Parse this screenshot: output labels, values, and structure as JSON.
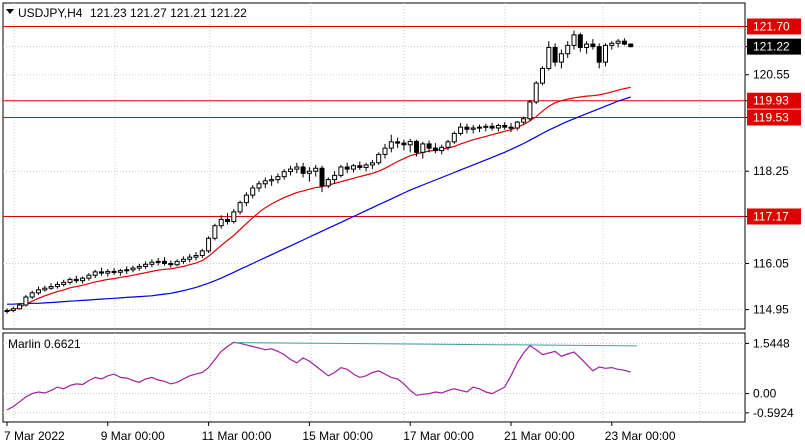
{
  "header": {
    "symbol_tf": "USDJPY,H4",
    "ohlc": "121.23 121.27 121.21 121.22"
  },
  "colors": {
    "background": "#ffffff",
    "plot_bg": "#ffffff",
    "grid": "#c8c8c8",
    "frame": "#000000",
    "candle": "#000000",
    "ma_fast": "#e00000",
    "ma_slow": "#0000e0",
    "level_line": "#e00000",
    "level_tag_bg": "#e00000",
    "level_tag_text": "#ffffff",
    "price_tag_bg": "#000000",
    "price_tag_text": "#ffffff",
    "oscillator": "#a020a0",
    "osc_trendline": "#40a0a0"
  },
  "icons": {
    "menu": "triangle-down-icon"
  },
  "chart_data": [
    {
      "type": "candlestick",
      "title": "USDJPY,H4",
      "ylim": [
        114.75,
        121.95
      ],
      "y_ticks": [
        "121.70",
        "121.22",
        "120.55",
        "119.93",
        "119.53",
        "118.25",
        "117.17",
        "116.05",
        "114.95"
      ],
      "x_tick_labels": [
        "7 Mar 2022",
        "9 Mar 00:00",
        "11 Mar 00:00",
        "15 Mar 00:00",
        "17 Mar 00:00",
        "21 Mar 00:00",
        "23 Mar 00:00"
      ],
      "x_tick_bar_index": [
        0,
        16,
        32,
        48,
        64,
        80,
        96
      ],
      "grid": true,
      "levels": [
        {
          "value": 121.7,
          "label": "121.70"
        },
        {
          "value": 119.93,
          "label": "119.93"
        },
        {
          "value": 119.53,
          "label": "119.53"
        },
        {
          "value": 117.17,
          "label": "117.17"
        }
      ],
      "current_price": {
        "value": 121.22,
        "label": "121.22"
      },
      "candles": [
        [
          114.92,
          114.98,
          114.85,
          114.93
        ],
        [
          114.93,
          115.02,
          114.89,
          114.97
        ],
        [
          114.97,
          115.1,
          114.95,
          115.06
        ],
        [
          115.06,
          115.3,
          115.02,
          115.25
        ],
        [
          115.25,
          115.4,
          115.2,
          115.35
        ],
        [
          115.35,
          115.5,
          115.3,
          115.42
        ],
        [
          115.42,
          115.52,
          115.38,
          115.46
        ],
        [
          115.46,
          115.58,
          115.42,
          115.5
        ],
        [
          115.5,
          115.62,
          115.45,
          115.55
        ],
        [
          115.55,
          115.66,
          115.5,
          115.6
        ],
        [
          115.6,
          115.72,
          115.55,
          115.67
        ],
        [
          115.67,
          115.76,
          115.58,
          115.64
        ],
        [
          115.64,
          115.74,
          115.57,
          115.7
        ],
        [
          115.7,
          115.82,
          115.64,
          115.77
        ],
        [
          115.77,
          115.9,
          115.7,
          115.85
        ],
        [
          115.85,
          115.95,
          115.76,
          115.82
        ],
        [
          115.82,
          115.92,
          115.74,
          115.86
        ],
        [
          115.86,
          115.94,
          115.78,
          115.84
        ],
        [
          115.84,
          115.92,
          115.76,
          115.88
        ],
        [
          115.88,
          115.98,
          115.8,
          115.9
        ],
        [
          115.9,
          116.0,
          115.84,
          115.94
        ],
        [
          115.94,
          116.04,
          115.88,
          115.98
        ],
        [
          115.98,
          116.1,
          115.92,
          116.03
        ],
        [
          116.03,
          116.15,
          115.96,
          116.08
        ],
        [
          116.08,
          116.18,
          116.0,
          116.1
        ],
        [
          116.1,
          116.2,
          116.0,
          116.05
        ],
        [
          116.05,
          116.12,
          115.95,
          116.02
        ],
        [
          116.02,
          116.15,
          115.98,
          116.1
        ],
        [
          116.1,
          116.22,
          116.04,
          116.15
        ],
        [
          116.15,
          116.28,
          116.08,
          116.2
        ],
        [
          116.2,
          116.32,
          116.12,
          116.24
        ],
        [
          116.24,
          116.4,
          116.18,
          116.35
        ],
        [
          116.35,
          116.7,
          116.3,
          116.65
        ],
        [
          116.65,
          117.0,
          116.6,
          116.95
        ],
        [
          116.95,
          117.2,
          116.88,
          117.1
        ],
        [
          117.1,
          117.25,
          116.98,
          117.05
        ],
        [
          117.05,
          117.35,
          117.0,
          117.28
        ],
        [
          117.28,
          117.55,
          117.22,
          117.5
        ],
        [
          117.5,
          117.75,
          117.42,
          117.68
        ],
        [
          117.68,
          117.92,
          117.6,
          117.85
        ],
        [
          117.85,
          118.02,
          117.76,
          117.95
        ],
        [
          117.95,
          118.1,
          117.85,
          118.02
        ],
        [
          118.02,
          118.15,
          117.9,
          118.05
        ],
        [
          118.05,
          118.2,
          117.96,
          118.12
        ],
        [
          118.12,
          118.3,
          118.05,
          118.24
        ],
        [
          118.24,
          118.38,
          118.15,
          118.3
        ],
        [
          118.3,
          118.45,
          118.2,
          118.35
        ],
        [
          118.35,
          118.45,
          118.1,
          118.2
        ],
        [
          118.2,
          118.35,
          118.0,
          118.25
        ],
        [
          118.25,
          118.4,
          118.12,
          118.32
        ],
        [
          118.32,
          118.38,
          117.75,
          117.9
        ],
        [
          117.9,
          118.1,
          117.85,
          118.05
        ],
        [
          118.05,
          118.25,
          117.95,
          118.15
        ],
        [
          118.15,
          118.4,
          118.1,
          118.35
        ],
        [
          118.35,
          118.45,
          118.2,
          118.3
        ],
        [
          118.3,
          118.42,
          118.22,
          118.38
        ],
        [
          118.38,
          118.48,
          118.28,
          118.34
        ],
        [
          118.34,
          118.45,
          118.25,
          118.4
        ],
        [
          118.4,
          118.52,
          118.3,
          118.45
        ],
        [
          118.45,
          118.7,
          118.4,
          118.65
        ],
        [
          118.65,
          118.9,
          118.55,
          118.8
        ],
        [
          118.8,
          119.12,
          118.7,
          118.95
        ],
        [
          118.95,
          119.05,
          118.8,
          118.92
        ],
        [
          118.92,
          119.0,
          118.75,
          118.88
        ],
        [
          118.88,
          119.02,
          118.7,
          118.96
        ],
        [
          118.96,
          119.0,
          118.6,
          118.7
        ],
        [
          118.7,
          118.95,
          118.55,
          118.9
        ],
        [
          118.9,
          118.98,
          118.7,
          118.8
        ],
        [
          118.8,
          118.92,
          118.68,
          118.74
        ],
        [
          118.74,
          118.88,
          118.65,
          118.82
        ],
        [
          118.82,
          119.0,
          118.75,
          118.95
        ],
        [
          118.95,
          119.2,
          118.9,
          119.15
        ],
        [
          119.15,
          119.4,
          119.1,
          119.3
        ],
        [
          119.3,
          119.38,
          119.15,
          119.25
        ],
        [
          119.25,
          119.35,
          119.15,
          119.28
        ],
        [
          119.28,
          119.36,
          119.18,
          119.3
        ],
        [
          119.3,
          119.38,
          119.2,
          119.32
        ],
        [
          119.32,
          119.4,
          119.22,
          119.28
        ],
        [
          119.28,
          119.38,
          119.2,
          119.34
        ],
        [
          119.34,
          119.42,
          119.24,
          119.3
        ],
        [
          119.3,
          119.4,
          119.18,
          119.28
        ],
        [
          119.28,
          119.45,
          119.22,
          119.42
        ],
        [
          119.42,
          119.55,
          119.35,
          119.5
        ],
        [
          119.5,
          119.95,
          119.45,
          119.9
        ],
        [
          119.9,
          120.4,
          119.85,
          120.35
        ],
        [
          120.35,
          120.75,
          120.3,
          120.7
        ],
        [
          120.7,
          121.35,
          120.65,
          121.2
        ],
        [
          121.2,
          121.3,
          120.75,
          120.85
        ],
        [
          120.85,
          121.15,
          120.7,
          121.05
        ],
        [
          121.05,
          121.35,
          120.95,
          121.25
        ],
        [
          121.25,
          121.6,
          121.15,
          121.5
        ],
        [
          121.5,
          121.55,
          121.1,
          121.2
        ],
        [
          121.2,
          121.35,
          121.05,
          121.28
        ],
        [
          121.28,
          121.4,
          121.15,
          121.22
        ],
        [
          121.22,
          121.3,
          120.7,
          120.85
        ],
        [
          120.85,
          121.3,
          120.75,
          121.25
        ],
        [
          121.25,
          121.35,
          121.15,
          121.3
        ],
        [
          121.3,
          121.4,
          121.2,
          121.35
        ],
        [
          121.35,
          121.42,
          121.25,
          121.28
        ],
        [
          121.28,
          121.3,
          121.2,
          121.22
        ]
      ],
      "ma_fast": [
        114.92,
        114.95,
        115.0,
        115.08,
        115.15,
        115.22,
        115.28,
        115.33,
        115.38,
        115.42,
        115.47,
        115.5,
        115.53,
        115.57,
        115.61,
        115.64,
        115.67,
        115.69,
        115.72,
        115.74,
        115.77,
        115.8,
        115.83,
        115.86,
        115.89,
        115.91,
        115.92,
        115.95,
        115.98,
        116.02,
        116.06,
        116.12,
        116.22,
        116.35,
        116.48,
        116.6,
        116.72,
        116.86,
        117.0,
        117.14,
        117.27,
        117.38,
        117.47,
        117.55,
        117.62,
        117.68,
        117.74,
        117.78,
        117.82,
        117.86,
        117.88,
        117.92,
        117.96,
        118.0,
        118.04,
        118.08,
        118.12,
        118.16,
        118.2,
        118.25,
        118.32,
        118.4,
        118.48,
        118.55,
        118.62,
        118.66,
        118.7,
        118.73,
        118.75,
        118.77,
        118.8,
        118.84,
        118.9,
        118.95,
        119.0,
        119.04,
        119.08,
        119.12,
        119.16,
        119.2,
        119.24,
        119.3,
        119.36,
        119.45,
        119.55,
        119.68,
        119.8,
        119.88,
        119.93,
        119.97,
        120.0,
        120.02,
        120.04,
        120.05,
        120.07,
        120.1,
        120.14,
        120.18,
        120.22,
        120.25
      ],
      "ma_slow": [
        115.08,
        115.08,
        115.09,
        115.09,
        115.1,
        115.1,
        115.11,
        115.12,
        115.13,
        115.14,
        115.15,
        115.16,
        115.17,
        115.18,
        115.19,
        115.2,
        115.21,
        115.22,
        115.23,
        115.24,
        115.25,
        115.26,
        115.27,
        115.28,
        115.3,
        115.32,
        115.34,
        115.37,
        115.4,
        115.44,
        115.48,
        115.53,
        115.58,
        115.64,
        115.7,
        115.77,
        115.84,
        115.91,
        115.98,
        116.05,
        116.12,
        116.19,
        116.26,
        116.33,
        116.4,
        116.47,
        116.54,
        116.61,
        116.68,
        116.75,
        116.82,
        116.89,
        116.96,
        117.03,
        117.1,
        117.17,
        117.24,
        117.31,
        117.38,
        117.45,
        117.52,
        117.59,
        117.66,
        117.73,
        117.8,
        117.86,
        117.92,
        117.98,
        118.04,
        118.1,
        118.16,
        118.22,
        118.28,
        118.34,
        118.4,
        118.46,
        118.52,
        118.58,
        118.64,
        118.7,
        118.77,
        118.84,
        118.91,
        118.99,
        119.07,
        119.15,
        119.23,
        119.3,
        119.37,
        119.44,
        119.5,
        119.56,
        119.62,
        119.68,
        119.74,
        119.8,
        119.86,
        119.92,
        119.97,
        120.02
      ]
    },
    {
      "type": "line",
      "title": "Marlin 0.6621",
      "ylim": [
        -0.75,
        1.65
      ],
      "y_ticks": [
        "1.5448",
        "0.00",
        "-0.5924"
      ],
      "grid": true,
      "series": [
        {
          "values": [
            -0.5,
            -0.4,
            -0.25,
            -0.1,
            0.0,
            0.05,
            0.02,
            0.1,
            0.2,
            0.15,
            0.25,
            0.3,
            0.28,
            0.4,
            0.5,
            0.45,
            0.55,
            0.6,
            0.5,
            0.48,
            0.4,
            0.35,
            0.45,
            0.5,
            0.42,
            0.38,
            0.3,
            0.35,
            0.45,
            0.55,
            0.6,
            0.65,
            0.8,
            1.05,
            1.3,
            1.45,
            1.58,
            1.55,
            1.5,
            1.45,
            1.4,
            1.35,
            1.38,
            1.3,
            1.2,
            1.05,
            0.95,
            1.1,
            1.0,
            0.85,
            0.7,
            0.55,
            0.65,
            0.8,
            0.75,
            0.6,
            0.5,
            0.55,
            0.65,
            0.7,
            0.6,
            0.5,
            0.45,
            0.3,
            0.1,
            -0.05,
            -0.02,
            0.0,
            0.05,
            0.02,
            0.1,
            0.15,
            0.1,
            0.05,
            0.2,
            0.15,
            0.05,
            0.0,
            0.1,
            0.2,
            0.55,
            0.95,
            1.25,
            1.48,
            1.35,
            1.2,
            1.25,
            1.3,
            1.15,
            1.22,
            1.28,
            1.1,
            0.9,
            0.7,
            0.82,
            0.78,
            0.8,
            0.75,
            0.72,
            0.66
          ]
        },
        {
          "values_from": [
            36,
            1.57
          ],
          "values_to": [
            100,
            1.47
          ]
        }
      ]
    }
  ]
}
